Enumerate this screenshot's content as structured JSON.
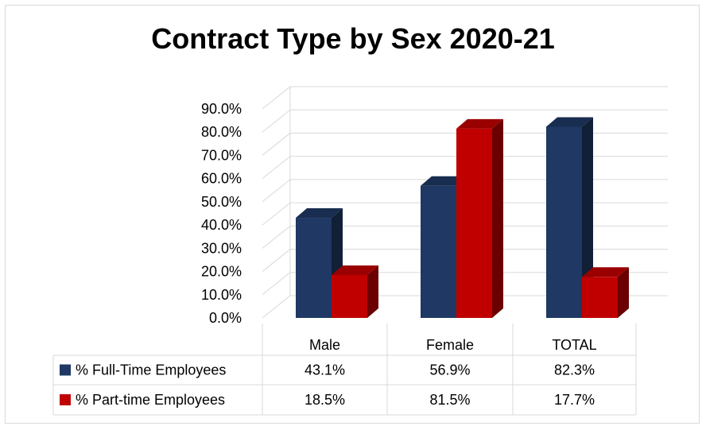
{
  "chart_data": {
    "type": "bar",
    "title": "Contract Type by Sex 2020-21",
    "categories": [
      "Male",
      "Female",
      "TOTAL"
    ],
    "series": [
      {
        "name": "% Full-Time Employees",
        "values": [
          43.1,
          56.9,
          82.3
        ],
        "labels": [
          "43.1%",
          "56.9%",
          "82.3%"
        ],
        "color": "#1f3864"
      },
      {
        "name": "% Part-time Employees",
        "values": [
          18.5,
          81.5,
          17.7
        ],
        "labels": [
          "18.5%",
          "81.5%",
          "17.7%"
        ],
        "color": "#c00000"
      }
    ],
    "yticks": [
      "0.0%",
      "10.0%",
      "20.0%",
      "30.0%",
      "40.0%",
      "50.0%",
      "60.0%",
      "70.0%",
      "80.0%",
      "90.0%"
    ],
    "ylim": [
      0,
      90
    ],
    "grid": true,
    "legend": "data-table",
    "style": "3d-clustered-columns"
  }
}
